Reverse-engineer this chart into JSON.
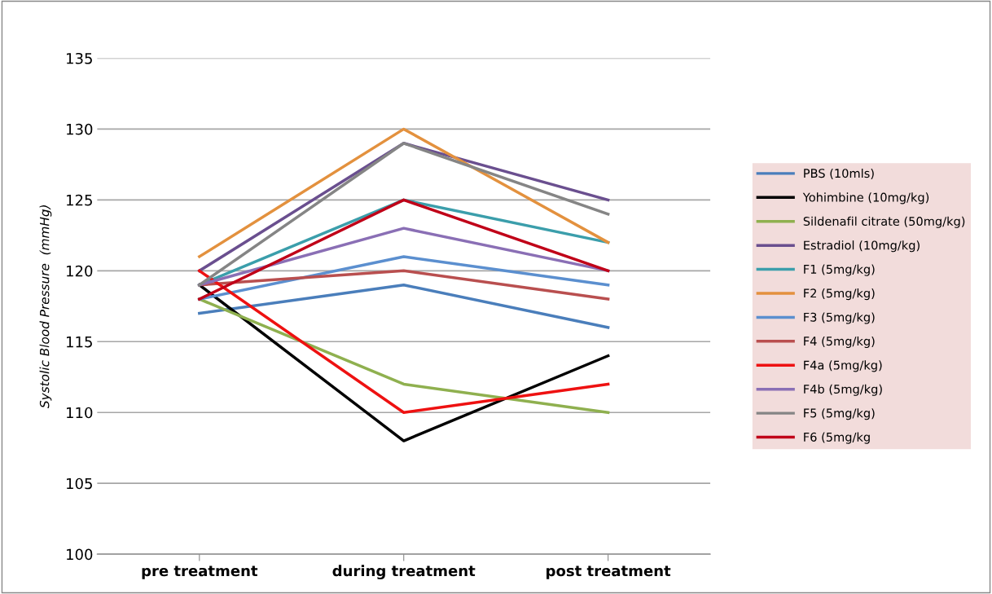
{
  "chart_data": {
    "type": "line",
    "ylabel": "Systolic Blood Pressure  (mmHg)",
    "categories": [
      "pre treatment",
      "during treatment",
      "post treatment"
    ],
    "ylim": [
      100,
      135
    ],
    "yticks": [
      100,
      105,
      110,
      115,
      120,
      125,
      130,
      135
    ],
    "grid": "y",
    "legend": "right",
    "marker": "none",
    "line_style": "solid",
    "series": [
      {
        "name": "PBS (10mls)",
        "color": "#4a7ebb",
        "values": [
          117,
          119,
          116
        ]
      },
      {
        "name": "Yohimbine (10mg/kg)",
        "color": "#000000",
        "values": [
          119,
          108,
          114
        ]
      },
      {
        "name": "Sildenafil citrate (50mg/kg)",
        "color": "#8fb04f",
        "values": [
          118,
          112,
          110
        ]
      },
      {
        "name": "Estradiol (10mg/kg)",
        "color": "#6a4f8f",
        "values": [
          120,
          129,
          125
        ]
      },
      {
        "name": "F1 (5mg/kg)",
        "color": "#3b9eab",
        "values": [
          119,
          125,
          122
        ]
      },
      {
        "name": "F2 (5mg/kg)",
        "color": "#e3913e",
        "values": [
          121,
          130,
          122
        ]
      },
      {
        "name": "F3 (5mg/kg)",
        "color": "#5b8fcf",
        "values": [
          118,
          121,
          119
        ]
      },
      {
        "name": "F4 (5mg/kg)",
        "color": "#b94f4f",
        "values": [
          119,
          120,
          118
        ]
      },
      {
        "name": "F4a (5mg/kg)",
        "color": "#ee1111",
        "values": [
          120,
          110,
          112
        ]
      },
      {
        "name": "F4b (5mg/kg)",
        "color": "#8a6fb5",
        "values": [
          119,
          123,
          120
        ]
      },
      {
        "name": "F5 (5mg/kg)",
        "color": "#858585",
        "values": [
          119,
          129,
          124
        ]
      },
      {
        "name": "F6 (5mg/kg",
        "color": "#c00018",
        "values": [
          118,
          125,
          120
        ]
      }
    ]
  }
}
